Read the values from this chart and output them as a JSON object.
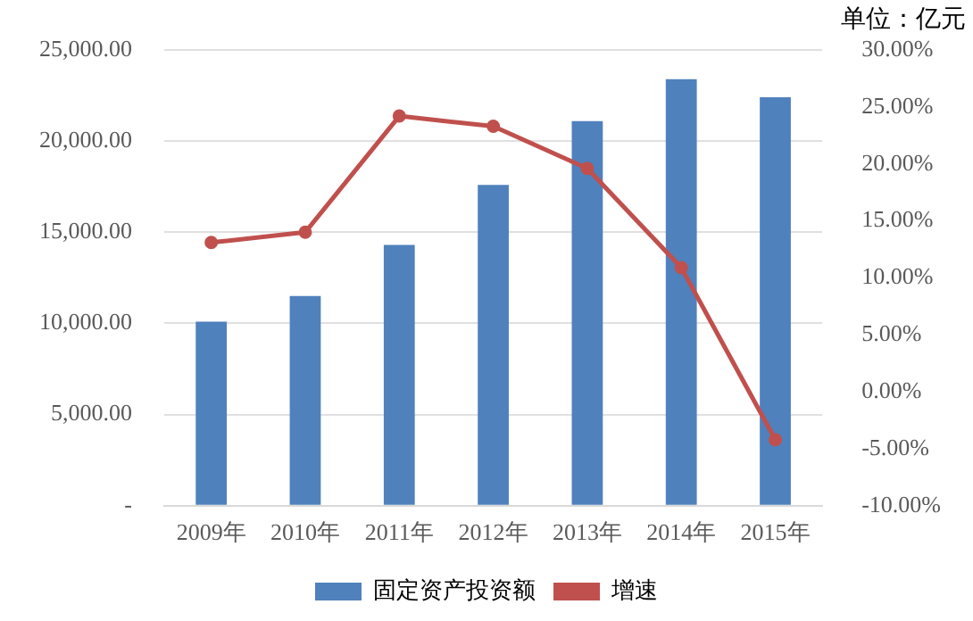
{
  "chart_data": {
    "type": "bar",
    "annotations": [
      "单位：亿元"
    ],
    "categories": [
      "2009年",
      "2010年",
      "2011年",
      "2012年",
      "2013年",
      "2014年",
      "2015年"
    ],
    "series": [
      {
        "name": "固定资产投资额",
        "color": "#4f81bd",
        "values": [
          10100,
          11500,
          14300,
          17600,
          21100,
          23400,
          22400
        ]
      },
      {
        "name": "增速",
        "type": "line",
        "axis": "y2",
        "color": "#c0504d",
        "marker": "circle",
        "values": [
          13.1,
          14.0,
          24.2,
          23.3,
          19.6,
          10.9,
          -4.2
        ]
      }
    ],
    "ylim": [
      0,
      25000
    ],
    "yticks": [
      {
        "value": 0,
        "label": "-"
      },
      {
        "value": 5000,
        "label": "5,000.00"
      },
      {
        "value": 10000,
        "label": "10,000.00"
      },
      {
        "value": 15000,
        "label": "15,000.00"
      },
      {
        "value": 20000,
        "label": "20,000.00"
      },
      {
        "value": 25000,
        "label": "25,000.00"
      }
    ],
    "y2lim": [
      -10,
      30
    ],
    "y2ticks": [
      {
        "value": -10,
        "label": "-10.00%"
      },
      {
        "value": -5,
        "label": "-5.00%"
      },
      {
        "value": 0,
        "label": "0.00%"
      },
      {
        "value": 5,
        "label": "5.00%"
      },
      {
        "value": 10,
        "label": "10.00%"
      },
      {
        "value": 15,
        "label": "15.00%"
      },
      {
        "value": 20,
        "label": "20.00%"
      },
      {
        "value": 25,
        "label": "25.00%"
      },
      {
        "value": 30,
        "label": "30.00%"
      }
    ],
    "grid": "y",
    "legend": "bottom"
  }
}
